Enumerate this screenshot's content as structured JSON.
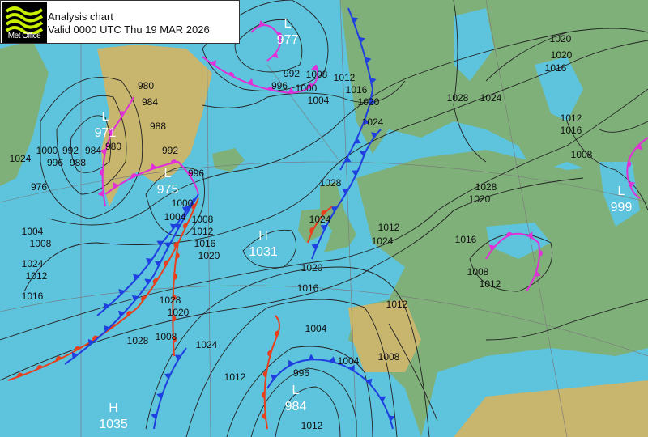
{
  "header": {
    "logo_text": "Met Office",
    "title": "Analysis chart",
    "valid": "Valid 0000 UTC Thu 19 MAR 2026"
  },
  "colors": {
    "sea": "#5ec3dc",
    "land_low": "#7fb07a",
    "land_high": "#c8b56e",
    "cold_front": "#1f3fe0",
    "warm_front": "#e8401c",
    "occluded_front": "#e030d8",
    "isobar": "#222222"
  },
  "pressure_centres": [
    {
      "type": "L",
      "value": "977"
    },
    {
      "type": "L",
      "value": "971"
    },
    {
      "type": "L",
      "value": "975"
    },
    {
      "type": "H",
      "value": "1031"
    },
    {
      "type": "L",
      "value": "999"
    },
    {
      "type": "H",
      "value": "1035"
    },
    {
      "type": "L",
      "value": "984"
    }
  ],
  "isobar_labels": [
    "1020",
    "1016",
    "1012",
    "1008",
    "1028",
    "1024",
    "1012",
    "1008",
    "1024",
    "1020",
    "1016",
    "1012",
    "1028",
    "1024",
    "1016",
    "1020",
    "1012",
    "1008",
    "1004",
    "996",
    "1028",
    "1024",
    "1012",
    "1004",
    "996",
    "992",
    "1000",
    "1004",
    "1008",
    "1012",
    "1016",
    "1020",
    "1024",
    "980",
    "984",
    "988",
    "992",
    "996",
    "1000",
    "1004",
    "1008",
    "1012",
    "1016",
    "1020",
    "1024",
    "1000",
    "996",
    "992",
    "988",
    "984",
    "980",
    "976",
    "1004",
    "1008",
    "1012",
    "1016",
    "1020",
    "1024",
    "1028",
    "1020",
    "1016",
    "1012",
    "1008",
    "1028"
  ]
}
